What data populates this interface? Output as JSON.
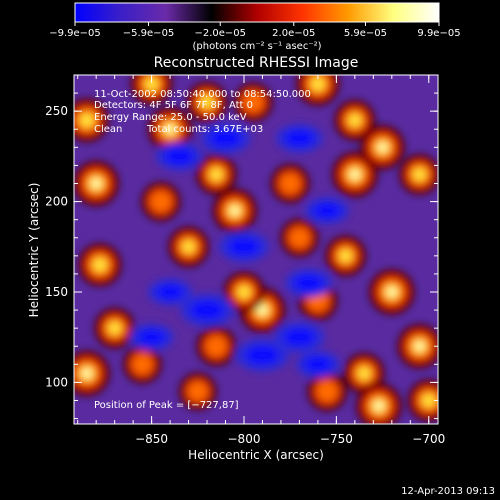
{
  "colorbar": {
    "tick_labels": [
      "−9.9e−05",
      "−5.9e−05",
      "−2.0e−05",
      "2.0e−05",
      "5.9e−05",
      "9.9e−05"
    ],
    "tick_values": [
      -9.9e-05,
      -5.9e-05,
      -2e-05,
      2e-05,
      5.9e-05,
      9.9e-05
    ],
    "range": [
      -9.9e-05,
      9.9e-05
    ],
    "unit_label": "(photons cm⁻² s⁻¹ asec⁻²)",
    "colors": [
      "#0000ff",
      "#3a1fc8",
      "#6a2aa8",
      "#000000",
      "#b00000",
      "#ff3300",
      "#ff9a00",
      "#ffff80",
      "#ffffff"
    ]
  },
  "chart_data": {
    "type": "heatmap",
    "title": "Reconstructed RHESSI Image",
    "xlabel": "Heliocentric X (arcsec)",
    "ylabel": "Heliocentric Y (arcsec)",
    "xlim": [
      -892,
      -695
    ],
    "ylim": [
      77,
      270
    ],
    "x_ticks": [
      -850,
      -800,
      -750,
      -700
    ],
    "x_tick_labels": [
      "−850",
      "−800",
      "−750",
      "−700"
    ],
    "y_ticks": [
      100,
      150,
      200,
      250
    ],
    "y_tick_labels": [
      "100",
      "150",
      "200",
      "250"
    ],
    "peak": {
      "x": -727,
      "y": 87
    },
    "annotations": {
      "time": "11-Oct-2002 08:50:40.000 to 08:54:50.000",
      "detectors": "Detectors: 4F 5F 6F 7F 8F, Att 0",
      "energy": "Energy Range: 25.0 - 50.0 keV",
      "method": "Clean",
      "counts": "Total counts: 3.67E+03",
      "peak_text": "Position of Peak = [−727,87]"
    },
    "blobs": [
      {
        "x": -885,
        "y": 245,
        "a": 0.85
      },
      {
        "x": -880,
        "y": 210,
        "a": 1.0
      },
      {
        "x": -878,
        "y": 165,
        "a": 0.8
      },
      {
        "x": -885,
        "y": 105,
        "a": 1.0
      },
      {
        "x": -870,
        "y": 130,
        "a": 0.6
      },
      {
        "x": -850,
        "y": 265,
        "a": 0.7
      },
      {
        "x": -840,
        "y": 240,
        "a": 0.9
      },
      {
        "x": -820,
        "y": 255,
        "a": 0.6
      },
      {
        "x": -845,
        "y": 200,
        "a": 0.5
      },
      {
        "x": -830,
        "y": 175,
        "a": 0.6
      },
      {
        "x": -795,
        "y": 255,
        "a": 0.45
      },
      {
        "x": -775,
        "y": 210,
        "a": 0.45
      },
      {
        "x": -805,
        "y": 195,
        "a": 0.9
      },
      {
        "x": -815,
        "y": 215,
        "a": 0.6
      },
      {
        "x": -790,
        "y": 140,
        "a": 1.0
      },
      {
        "x": -800,
        "y": 150,
        "a": 0.6
      },
      {
        "x": -740,
        "y": 215,
        "a": 1.0
      },
      {
        "x": -725,
        "y": 230,
        "a": 0.9
      },
      {
        "x": -705,
        "y": 215,
        "a": 0.6
      },
      {
        "x": -760,
        "y": 265,
        "a": 0.8
      },
      {
        "x": -740,
        "y": 245,
        "a": 0.6
      },
      {
        "x": -745,
        "y": 170,
        "a": 0.6
      },
      {
        "x": -760,
        "y": 145,
        "a": 0.45
      },
      {
        "x": -720,
        "y": 150,
        "a": 1.0
      },
      {
        "x": -705,
        "y": 120,
        "a": 0.9
      },
      {
        "x": -735,
        "y": 105,
        "a": 0.6
      },
      {
        "x": -727,
        "y": 87,
        "a": 1.0
      },
      {
        "x": -755,
        "y": 95,
        "a": 0.5
      },
      {
        "x": -700,
        "y": 90,
        "a": 0.7
      },
      {
        "x": -855,
        "y": 110,
        "a": 0.4
      },
      {
        "x": -825,
        "y": 95,
        "a": 0.35
      },
      {
        "x": -815,
        "y": 120,
        "a": 0.5
      },
      {
        "x": -770,
        "y": 180,
        "a": 0.4
      },
      {
        "x": -810,
        "y": 235,
        "a": -0.6
      },
      {
        "x": -835,
        "y": 225,
        "a": -0.5
      },
      {
        "x": -770,
        "y": 235,
        "a": -0.5
      },
      {
        "x": -820,
        "y": 140,
        "a": -0.7
      },
      {
        "x": -800,
        "y": 175,
        "a": -0.6
      },
      {
        "x": -790,
        "y": 115,
        "a": -0.7
      },
      {
        "x": -770,
        "y": 125,
        "a": -0.6
      },
      {
        "x": -765,
        "y": 155,
        "a": -0.5
      },
      {
        "x": -840,
        "y": 150,
        "a": -0.4
      },
      {
        "x": -850,
        "y": 125,
        "a": -0.4
      },
      {
        "x": -755,
        "y": 195,
        "a": -0.4
      },
      {
        "x": -760,
        "y": 110,
        "a": -0.4
      }
    ]
  },
  "footer": {
    "timestamp": "12-Apr-2013 09:13"
  }
}
